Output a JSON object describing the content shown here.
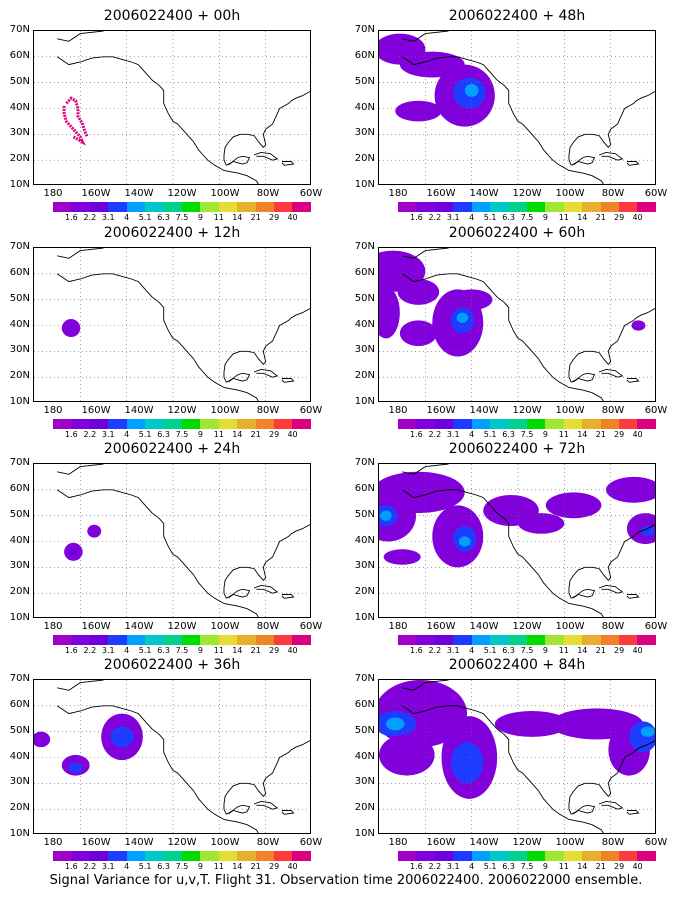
{
  "panels": [
    {
      "title": "2006022400 + 00h"
    },
    {
      "title": "2006022400 + 48h"
    },
    {
      "title": "2006022400 + 12h"
    },
    {
      "title": "2006022400 + 60h"
    },
    {
      "title": "2006022400 + 24h"
    },
    {
      "title": "2006022400 + 72h"
    },
    {
      "title": "2006022400 + 36h"
    },
    {
      "title": "2006022400 + 84h"
    }
  ],
  "y_labels": [
    "70N",
    "60N",
    "50N",
    "40N",
    "30N",
    "20N",
    "10N"
  ],
  "x_labels": [
    "180",
    "160W",
    "140W",
    "120W",
    "100W",
    "80W",
    "60W"
  ],
  "colorbar": {
    "labels": [
      "1.6",
      "2.2",
      "3.1",
      "4",
      "5.1",
      "6.3",
      "7.5",
      "9",
      "11",
      "14",
      "21",
      "29",
      "40"
    ],
    "colors": [
      "#a000c8",
      "#8200dc",
      "#6e00dc",
      "#1e3cff",
      "#00a0ff",
      "#00c8c8",
      "#00d28c",
      "#00dc00",
      "#a0e632",
      "#e6dc32",
      "#e6af2d",
      "#f08228",
      "#fa3c3c",
      "#dc0080"
    ]
  },
  "footer": "Signal Variance for u,v,T. Flight 31. Observation time 2006022400. 2006022000 ensemble."
}
